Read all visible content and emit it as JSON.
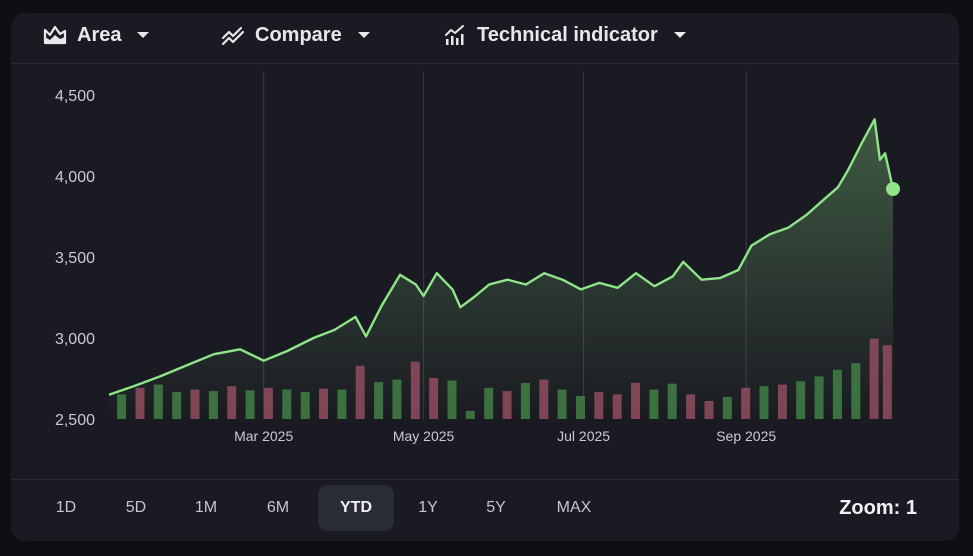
{
  "toolbar": {
    "chart_type_label": "Area",
    "compare_label": "Compare",
    "indicator_label": "Technical indicator"
  },
  "ranges": [
    "1D",
    "5D",
    "1M",
    "6M",
    "YTD",
    "1Y",
    "5Y",
    "MAX"
  ],
  "active_range": "YTD",
  "zoom_label": "Zoom: 1",
  "colors": {
    "line": "#8fe388",
    "bar_up": "#3f7a45",
    "bar_down": "#8a4a5c",
    "grid": "#3a3b44"
  },
  "chart_data": {
    "type": "area",
    "y_ticks": [
      "4,500",
      "4,000",
      "3,500",
      "3,000",
      "2,500"
    ],
    "y_tick_values": [
      4500,
      4000,
      3500,
      3000,
      2500
    ],
    "ylim": [
      2500,
      4500
    ],
    "x_ticks": [
      "Mar 2025",
      "May 2025",
      "Jul 2025",
      "Sep 2025"
    ],
    "x_tick_dates": [
      "2025-03-01",
      "2025-05-01",
      "2025-07-01",
      "2025-09-01"
    ],
    "x_range": [
      "2025-01-01",
      "2025-10-27"
    ],
    "grid": "vertical",
    "series": [
      {
        "points": [
          [
            "2025-01-01",
            2650
          ],
          [
            "2025-01-10",
            2700
          ],
          [
            "2025-01-20",
            2760
          ],
          [
            "2025-02-01",
            2840
          ],
          [
            "2025-02-10",
            2900
          ],
          [
            "2025-02-20",
            2930
          ],
          [
            "2025-03-01",
            2860
          ],
          [
            "2025-03-10",
            2920
          ],
          [
            "2025-03-20",
            3000
          ],
          [
            "2025-03-28",
            3050
          ],
          [
            "2025-04-05",
            3130
          ],
          [
            "2025-04-09",
            3010
          ],
          [
            "2025-04-15",
            3200
          ],
          [
            "2025-04-22",
            3390
          ],
          [
            "2025-04-28",
            3330
          ],
          [
            "2025-05-01",
            3260
          ],
          [
            "2025-05-06",
            3400
          ],
          [
            "2025-05-12",
            3300
          ],
          [
            "2025-05-15",
            3190
          ],
          [
            "2025-05-20",
            3250
          ],
          [
            "2025-05-26",
            3330
          ],
          [
            "2025-06-02",
            3360
          ],
          [
            "2025-06-09",
            3330
          ],
          [
            "2025-06-16",
            3400
          ],
          [
            "2025-06-23",
            3360
          ],
          [
            "2025-06-30",
            3300
          ],
          [
            "2025-07-07",
            3340
          ],
          [
            "2025-07-14",
            3310
          ],
          [
            "2025-07-21",
            3400
          ],
          [
            "2025-07-28",
            3320
          ],
          [
            "2025-08-04",
            3380
          ],
          [
            "2025-08-08",
            3470
          ],
          [
            "2025-08-15",
            3360
          ],
          [
            "2025-08-22",
            3370
          ],
          [
            "2025-08-29",
            3420
          ],
          [
            "2025-09-03",
            3570
          ],
          [
            "2025-09-10",
            3640
          ],
          [
            "2025-09-17",
            3680
          ],
          [
            "2025-09-24",
            3760
          ],
          [
            "2025-10-01",
            3860
          ],
          [
            "2025-10-06",
            3930
          ],
          [
            "2025-10-10",
            4040
          ],
          [
            "2025-10-15",
            4200
          ],
          [
            "2025-10-20",
            4350
          ],
          [
            "2025-10-22",
            4100
          ],
          [
            "2025-10-24",
            4140
          ],
          [
            "2025-10-27",
            3920
          ]
        ]
      }
    ],
    "volume_scale": [
      0,
      1
    ],
    "volume": [
      {
        "date": "2025-01-06",
        "v": 0.3,
        "up": true
      },
      {
        "date": "2025-01-13",
        "v": 0.38,
        "up": false
      },
      {
        "date": "2025-01-20",
        "v": 0.42,
        "up": true
      },
      {
        "date": "2025-01-27",
        "v": 0.33,
        "up": true
      },
      {
        "date": "2025-02-03",
        "v": 0.36,
        "up": false
      },
      {
        "date": "2025-02-10",
        "v": 0.34,
        "up": true
      },
      {
        "date": "2025-02-17",
        "v": 0.4,
        "up": false
      },
      {
        "date": "2025-02-24",
        "v": 0.35,
        "up": true
      },
      {
        "date": "2025-03-03",
        "v": 0.38,
        "up": false
      },
      {
        "date": "2025-03-10",
        "v": 0.36,
        "up": true
      },
      {
        "date": "2025-03-17",
        "v": 0.33,
        "up": true
      },
      {
        "date": "2025-03-24",
        "v": 0.37,
        "up": false
      },
      {
        "date": "2025-03-31",
        "v": 0.36,
        "up": true
      },
      {
        "date": "2025-04-07",
        "v": 0.65,
        "up": false
      },
      {
        "date": "2025-04-14",
        "v": 0.45,
        "up": true
      },
      {
        "date": "2025-04-21",
        "v": 0.48,
        "up": true
      },
      {
        "date": "2025-04-28",
        "v": 0.7,
        "up": false
      },
      {
        "date": "2025-05-05",
        "v": 0.5,
        "up": false
      },
      {
        "date": "2025-05-12",
        "v": 0.47,
        "up": true
      },
      {
        "date": "2025-05-19",
        "v": 0.1,
        "up": true
      },
      {
        "date": "2025-05-26",
        "v": 0.38,
        "up": true
      },
      {
        "date": "2025-06-02",
        "v": 0.34,
        "up": false
      },
      {
        "date": "2025-06-09",
        "v": 0.44,
        "up": true
      },
      {
        "date": "2025-06-16",
        "v": 0.48,
        "up": false
      },
      {
        "date": "2025-06-23",
        "v": 0.36,
        "up": true
      },
      {
        "date": "2025-06-30",
        "v": 0.28,
        "up": true
      },
      {
        "date": "2025-07-07",
        "v": 0.33,
        "up": false
      },
      {
        "date": "2025-07-14",
        "v": 0.3,
        "up": false
      },
      {
        "date": "2025-07-21",
        "v": 0.44,
        "up": false
      },
      {
        "date": "2025-07-28",
        "v": 0.36,
        "up": true
      },
      {
        "date": "2025-08-04",
        "v": 0.43,
        "up": true
      },
      {
        "date": "2025-08-11",
        "v": 0.3,
        "up": false
      },
      {
        "date": "2025-08-18",
        "v": 0.22,
        "up": false
      },
      {
        "date": "2025-08-25",
        "v": 0.27,
        "up": true
      },
      {
        "date": "2025-09-01",
        "v": 0.38,
        "up": false
      },
      {
        "date": "2025-09-08",
        "v": 0.4,
        "up": true
      },
      {
        "date": "2025-09-15",
        "v": 0.42,
        "up": false
      },
      {
        "date": "2025-09-22",
        "v": 0.46,
        "up": true
      },
      {
        "date": "2025-09-29",
        "v": 0.52,
        "up": true
      },
      {
        "date": "2025-10-06",
        "v": 0.6,
        "up": true
      },
      {
        "date": "2025-10-13",
        "v": 0.68,
        "up": true
      },
      {
        "date": "2025-10-20",
        "v": 0.98,
        "up": false
      },
      {
        "date": "2025-10-25",
        "v": 0.9,
        "up": false
      }
    ]
  }
}
